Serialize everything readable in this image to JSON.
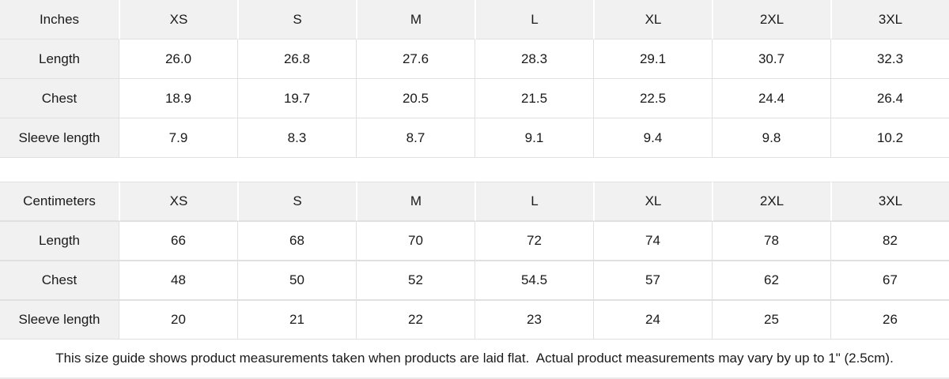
{
  "colors": {
    "header_bg": "#f1f1f1",
    "border": "#e0e0e0",
    "cell_bg": "#ffffff",
    "text": "#1a1a1a",
    "separator": "#ffffff"
  },
  "sections": [
    {
      "id": "inches",
      "unit_label": "Inches",
      "sizes": [
        "XS",
        "S",
        "M",
        "L",
        "XL",
        "2XL",
        "3XL"
      ],
      "rows": [
        {
          "label": "Length",
          "values": [
            "26.0",
            "26.8",
            "27.6",
            "28.3",
            "29.1",
            "30.7",
            "32.3"
          ]
        },
        {
          "label": "Chest",
          "values": [
            "18.9",
            "19.7",
            "20.5",
            "21.5",
            "22.5",
            "24.4",
            "26.4"
          ]
        },
        {
          "label": "Sleeve length",
          "values": [
            "7.9",
            "8.3",
            "8.7",
            "9.1",
            "9.4",
            "9.8",
            "10.2"
          ]
        }
      ]
    },
    {
      "id": "centimeters",
      "unit_label": "Centimeters",
      "sizes": [
        "XS",
        "S",
        "M",
        "L",
        "XL",
        "2XL",
        "3XL"
      ],
      "rows": [
        {
          "label": "Length",
          "values": [
            "66",
            "68",
            "70",
            "72",
            "74",
            "78",
            "82"
          ]
        },
        {
          "label": "Chest",
          "values": [
            "48",
            "50",
            "52",
            "54.5",
            "57",
            "62",
            "67"
          ]
        },
        {
          "label": "Sleeve length",
          "values": [
            "20",
            "21",
            "22",
            "23",
            "24",
            "25",
            "26"
          ]
        }
      ]
    }
  ],
  "footer": {
    "note": "This size guide shows product measurements taken when products are laid flat.  Actual product measurements may vary by up to 1\" (2.5cm)."
  }
}
